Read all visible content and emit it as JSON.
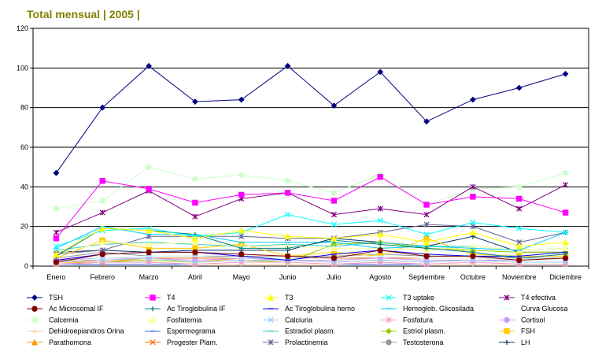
{
  "chart_data": {
    "type": "line",
    "title": "Total mensual | 2005 |",
    "categories": [
      "Enero",
      "Febrero",
      "Marzo",
      "Abril",
      "Mayo",
      "Junio",
      "Julio",
      "Agosto",
      "Septiembre",
      "Octubre",
      "Noviembre",
      "Diciembre"
    ],
    "ylim": [
      0,
      120
    ],
    "yticks": [
      0,
      20,
      40,
      60,
      80,
      100,
      120
    ],
    "grid": true,
    "legend_position": "bottom",
    "series": [
      {
        "name": "TSH",
        "color": "#000080",
        "marker": "diamond",
        "values": [
          47,
          80,
          101,
          83,
          84,
          101,
          81,
          98,
          73,
          84,
          90,
          97
        ]
      },
      {
        "name": "T4",
        "color": "#ff00ff",
        "marker": "square",
        "values": [
          14,
          43,
          39,
          32,
          36,
          37,
          33,
          45,
          31,
          35,
          34,
          27
        ]
      },
      {
        "name": "T3",
        "color": "#ffff00",
        "marker": "triangle",
        "values": [
          6,
          19,
          18,
          14,
          18,
          15,
          14,
          16,
          12,
          17,
          10,
          12
        ]
      },
      {
        "name": "T3 uptake",
        "color": "#00ffff",
        "marker": "x",
        "values": [
          10,
          18,
          19,
          15,
          17,
          26,
          21,
          23,
          16,
          22,
          19,
          17
        ]
      },
      {
        "name": "T4 efectiva",
        "color": "#800080",
        "marker": "star",
        "values": [
          17,
          27,
          38,
          25,
          34,
          37,
          26,
          29,
          26,
          40,
          29,
          41
        ]
      },
      {
        "name": "Ac Microsomal IF",
        "color": "#800000",
        "marker": "circle",
        "values": [
          2,
          6,
          7,
          7,
          6,
          5,
          4,
          8,
          5,
          5,
          3,
          4
        ]
      },
      {
        "name": "Ac Tiroglobulina IF",
        "color": "#008080",
        "marker": "plus",
        "values": [
          5,
          19,
          18,
          16,
          9,
          9,
          13,
          11,
          9,
          7,
          4,
          6
        ]
      },
      {
        "name": "Ac Tiroglobulina hemo",
        "color": "#0000ff",
        "marker": "dash",
        "values": [
          3,
          6,
          7,
          7,
          5,
          3,
          6,
          8,
          6,
          5,
          5,
          7
        ]
      },
      {
        "name": "Hemoglob. Glicosilada",
        "color": "#00ccff",
        "marker": "dash",
        "values": [
          9,
          20,
          16,
          16,
          12,
          12,
          12,
          9,
          10,
          9,
          8,
          17
        ]
      },
      {
        "name": "Curva Glucosa",
        "color": "#ccffff",
        "marker": "dash",
        "values": [
          2,
          4,
          5,
          5,
          4,
          4,
          4,
          5,
          4,
          4,
          3,
          3
        ]
      },
      {
        "name": "Calcemia",
        "color": "#ccffcc",
        "marker": "circle",
        "values": [
          29,
          33,
          50,
          44,
          46,
          43,
          37,
          46,
          31,
          39,
          40,
          47
        ]
      },
      {
        "name": "Fosfatemia",
        "color": "#ffff99",
        "marker": "triangle",
        "values": [
          6,
          12,
          11,
          12,
          10,
          10,
          9,
          9,
          8,
          10,
          8,
          9
        ]
      },
      {
        "name": "Calciuria",
        "color": "#99ccff",
        "marker": "x",
        "values": [
          2,
          3,
          4,
          2,
          3,
          3,
          2,
          3,
          2,
          3,
          2,
          2
        ]
      },
      {
        "name": "Fosfatura",
        "color": "#ff99cc",
        "marker": "star",
        "values": [
          1,
          2,
          2,
          1,
          2,
          2,
          1,
          2,
          1,
          2,
          1,
          1
        ]
      },
      {
        "name": "Cortisol",
        "color": "#cc99ff",
        "marker": "circle",
        "values": [
          3,
          4,
          4,
          3,
          4,
          3,
          3,
          4,
          3,
          3,
          3,
          3
        ]
      },
      {
        "name": "Dehidroepiandros Orina",
        "color": "#ffcc99",
        "marker": "plus",
        "values": [
          1,
          2,
          2,
          1,
          1,
          1,
          1,
          2,
          1,
          1,
          1,
          1
        ]
      },
      {
        "name": "Espermograma",
        "color": "#3366ff",
        "marker": "dash",
        "values": [
          1,
          1,
          1,
          1,
          1,
          1,
          1,
          1,
          1,
          1,
          1,
          1
        ]
      },
      {
        "name": "Estradiol plasm.",
        "color": "#33cccc",
        "marker": "dash",
        "values": [
          8,
          11,
          12,
          11,
          10,
          11,
          10,
          12,
          10,
          10,
          8,
          9
        ]
      },
      {
        "name": "Estriol plasm.",
        "color": "#99cc00",
        "marker": "diamond",
        "values": [
          1,
          2,
          3,
          2,
          3,
          2,
          11,
          12,
          9,
          8,
          7,
          7
        ]
      },
      {
        "name": "FSH",
        "color": "#ffcc00",
        "marker": "square",
        "values": [
          4,
          13,
          9,
          9,
          11,
          5,
          7,
          5,
          14,
          6,
          5,
          5
        ]
      },
      {
        "name": "Parathomona",
        "color": "#ff9900",
        "marker": "triangle",
        "values": [
          2,
          2,
          4,
          2,
          4,
          3,
          2,
          3,
          2,
          3,
          2,
          2
        ]
      },
      {
        "name": "Progester Plam.",
        "color": "#ff6600",
        "marker": "x",
        "values": [
          3,
          3,
          4,
          4,
          4,
          4,
          4,
          4,
          4,
          4,
          3,
          3
        ]
      },
      {
        "name": "Prolactinemia",
        "color": "#666699",
        "marker": "star",
        "values": [
          6,
          8,
          15,
          15,
          15,
          14,
          14,
          17,
          21,
          20,
          12,
          17
        ]
      },
      {
        "name": "Testosterona",
        "color": "#969696",
        "marker": "circle",
        "values": [
          4,
          7,
          5,
          5,
          5,
          5,
          5,
          6,
          5,
          5,
          4,
          4
        ]
      },
      {
        "name": "LH",
        "color": "#003366",
        "marker": "plus",
        "values": [
          7,
          8,
          7,
          8,
          8,
          8,
          14,
          12,
          10,
          15,
          7,
          7
        ]
      }
    ]
  }
}
